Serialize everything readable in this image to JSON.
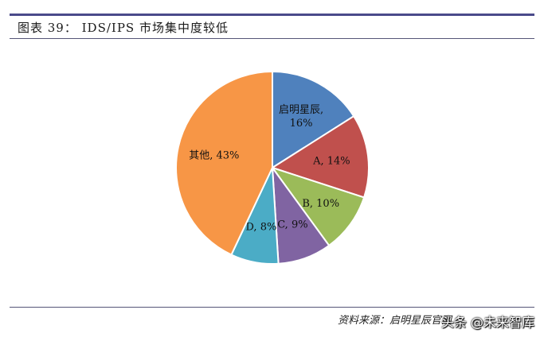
{
  "header": {
    "title": "图表 39：    IDS/IPS 市场集中度较低"
  },
  "footer": {
    "source": "资料来源：启明星辰官网",
    "watermark": "头条 @未来智库"
  },
  "chart_data": {
    "type": "pie",
    "title": "",
    "slices": [
      {
        "name": "启明星辰",
        "value": 16,
        "label_lines": [
          "启明星辰,",
          "16%"
        ],
        "color": "#4f81bd"
      },
      {
        "name": "A",
        "value": 14,
        "label_lines": [
          "A, 14%"
        ],
        "color": "#c0504d"
      },
      {
        "name": "B",
        "value": 10,
        "label_lines": [
          "B, 10%"
        ],
        "color": "#9bbb59"
      },
      {
        "name": "C",
        "value": 9,
        "label_lines": [
          "C, 9%"
        ],
        "color": "#8064a2"
      },
      {
        "name": "D",
        "value": 8,
        "label_lines": [
          "D, 8%"
        ],
        "color": "#4bacc6"
      },
      {
        "name": "其他",
        "value": 43,
        "label_lines": [
          "其他, 43%"
        ],
        "color": "#f79646"
      }
    ],
    "start": "12 o'clock",
    "direction": "clockwise",
    "legend": "none"
  }
}
